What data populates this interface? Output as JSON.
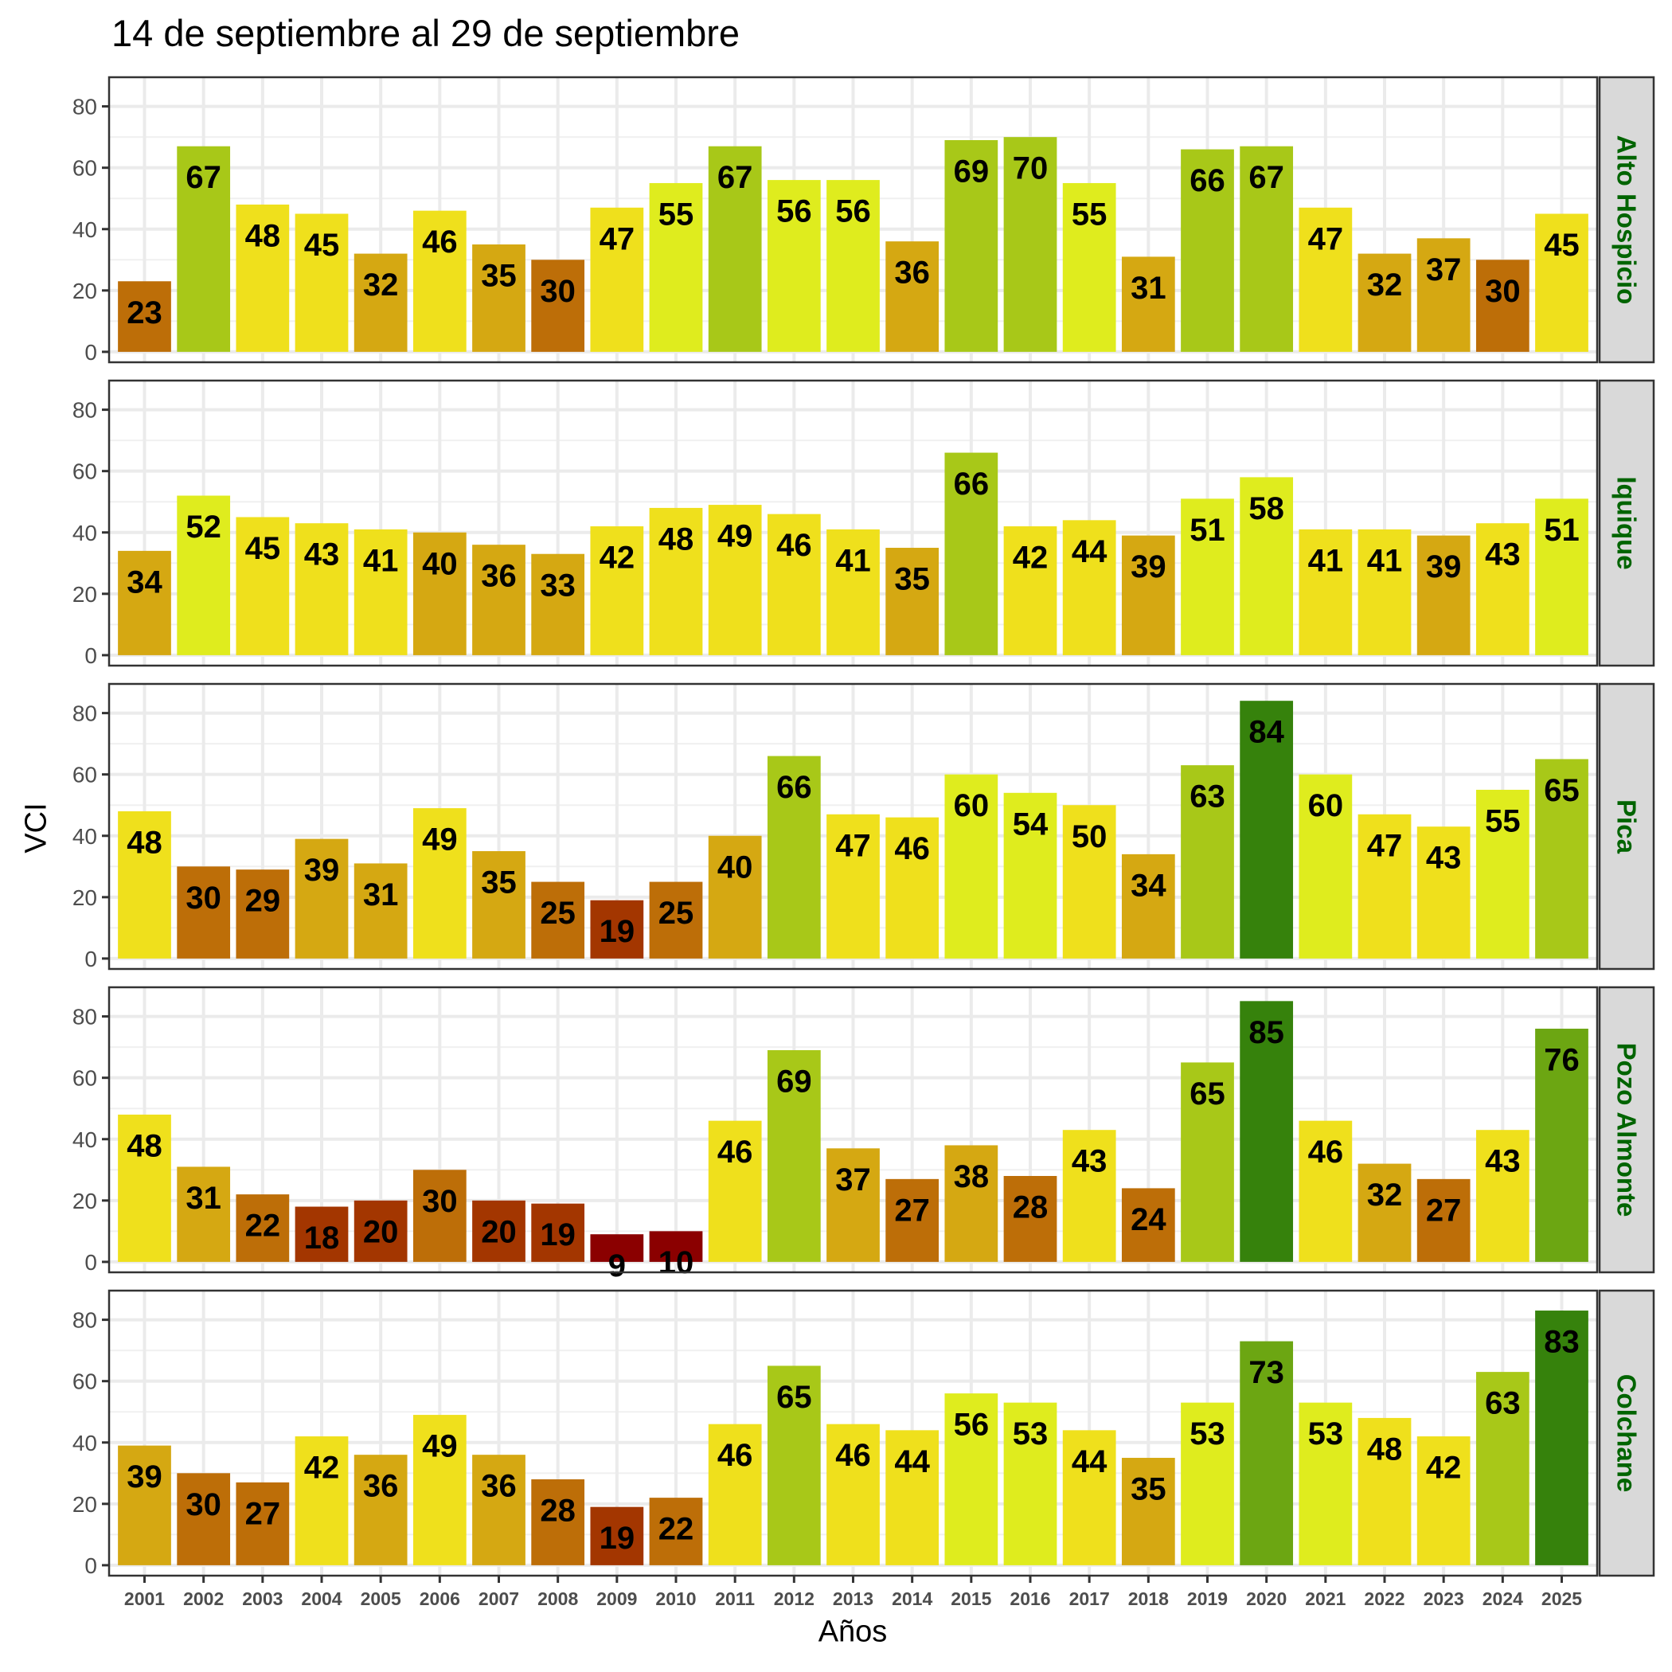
{
  "chart_data": {
    "type": "bar",
    "title": "14 de septiembre al 29 de septiembre",
    "xlabel": "Años",
    "ylabel": "VCI",
    "ylim": [
      0,
      88
    ],
    "yticks": [
      0,
      20,
      40,
      60,
      80
    ],
    "grid": true,
    "facet": "rows",
    "categories": [
      "2001",
      "2002",
      "2003",
      "2004",
      "2005",
      "2006",
      "2007",
      "2008",
      "2009",
      "2010",
      "2011",
      "2012",
      "2013",
      "2014",
      "2015",
      "2016",
      "2017",
      "2018",
      "2019",
      "2020",
      "2021",
      "2022",
      "2023",
      "2024",
      "2025"
    ],
    "series": [
      {
        "name": "Alto Hospicio",
        "values": [
          23,
          67,
          48,
          45,
          32,
          46,
          35,
          30,
          47,
          55,
          67,
          56,
          56,
          36,
          69,
          70,
          55,
          31,
          66,
          67,
          47,
          32,
          37,
          30,
          45
        ]
      },
      {
        "name": "Iquique",
        "values": [
          34,
          52,
          45,
          43,
          41,
          40,
          36,
          33,
          42,
          48,
          49,
          46,
          41,
          35,
          66,
          42,
          44,
          39,
          51,
          58,
          41,
          41,
          39,
          43,
          51
        ]
      },
      {
        "name": "Pica",
        "values": [
          48,
          30,
          29,
          39,
          31,
          49,
          35,
          25,
          19,
          25,
          40,
          66,
          47,
          46,
          60,
          54,
          50,
          34,
          63,
          84,
          60,
          47,
          43,
          55,
          65
        ]
      },
      {
        "name": "Pozo Almonte",
        "values": [
          48,
          31,
          22,
          18,
          20,
          30,
          20,
          19,
          9,
          10,
          46,
          69,
          37,
          27,
          38,
          28,
          43,
          24,
          65,
          85,
          46,
          32,
          27,
          43,
          76
        ]
      },
      {
        "name": "Colchane",
        "values": [
          39,
          30,
          27,
          42,
          36,
          49,
          36,
          28,
          19,
          22,
          46,
          65,
          46,
          44,
          56,
          53,
          44,
          35,
          53,
          73,
          53,
          48,
          42,
          63,
          83
        ]
      }
    ],
    "color_scale": [
      {
        "max": 10,
        "color": "#8b0000"
      },
      {
        "max": 20,
        "color": "#a33600"
      },
      {
        "max": 30,
        "color": "#bd6e08"
      },
      {
        "max": 40,
        "color": "#d5a812"
      },
      {
        "max": 50,
        "color": "#efe01c"
      },
      {
        "max": 60,
        "color": "#dfec1e"
      },
      {
        "max": 70,
        "color": "#a8c818"
      },
      {
        "max": 80,
        "color": "#6ca612"
      },
      {
        "max": 100,
        "color": "#36820c"
      }
    ],
    "strip_text_color": "#006400",
    "strip_background": "#d9d9d9"
  }
}
